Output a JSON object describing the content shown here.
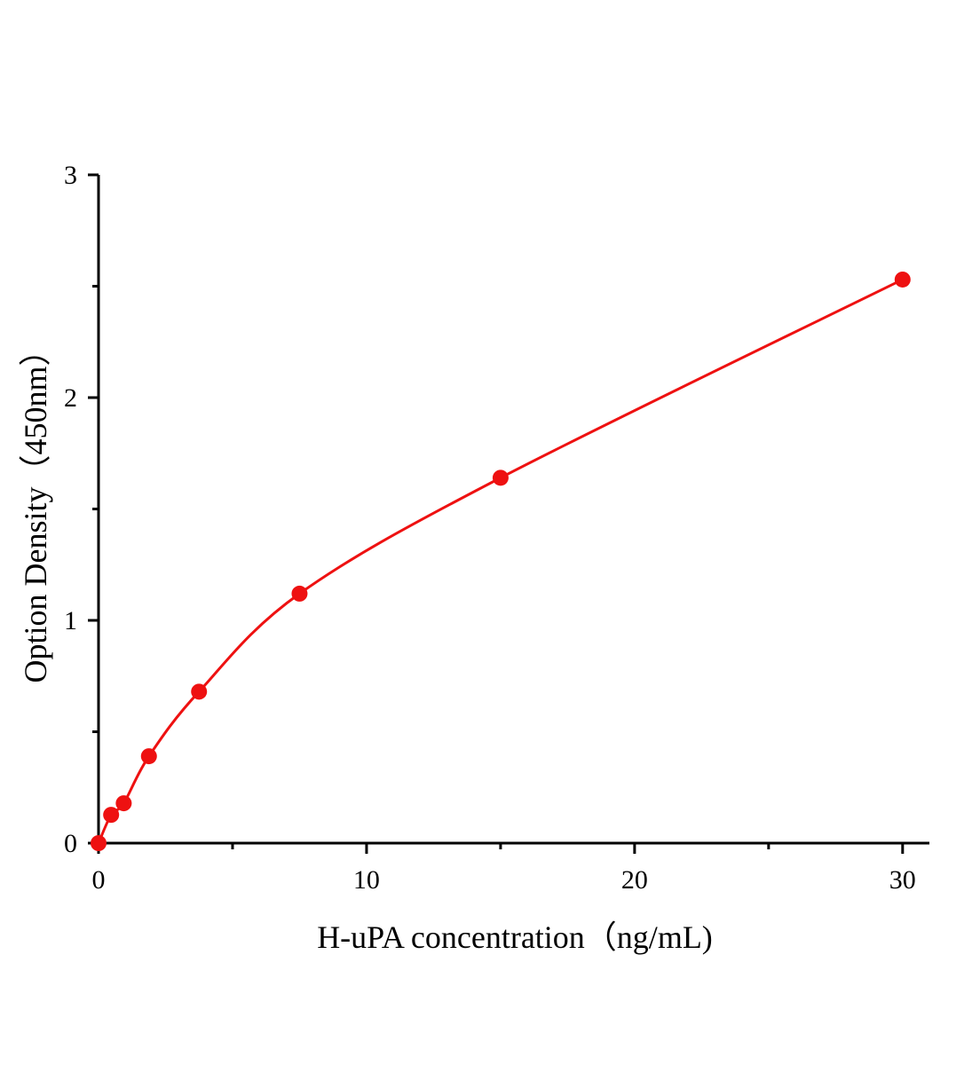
{
  "chart_data": {
    "type": "scatter",
    "title": "",
    "xlabel": "H-uPA concentration（ng/mL)",
    "ylabel": "Option Density（450nm）",
    "xlim": [
      0,
      31
    ],
    "ylim": [
      0,
      3
    ],
    "xticks": [
      0,
      10,
      20,
      30
    ],
    "xticks_minor": [
      5,
      15,
      25
    ],
    "yticks": [
      0,
      1,
      2,
      3
    ],
    "yticks_minor": [
      0.5,
      1.5,
      2.5
    ],
    "grid": false,
    "legend": "none",
    "series": [
      {
        "x": [
          0,
          0.47,
          0.94,
          1.88,
          3.75,
          7.5,
          15,
          30
        ],
        "y": [
          0,
          0.127,
          0.179,
          0.39,
          0.68,
          1.12,
          1.64,
          2.53
        ],
        "color": "#ee1111",
        "marker": "circle",
        "fit_line": true
      }
    ]
  }
}
